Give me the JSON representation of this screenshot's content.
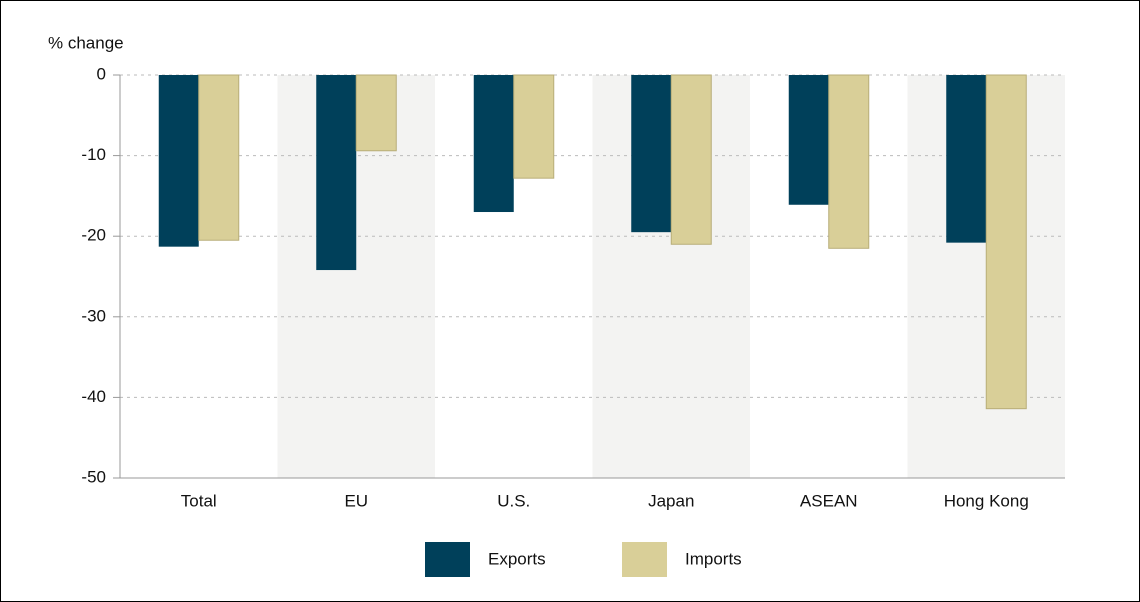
{
  "chart_data": {
    "type": "bar",
    "y_label": "% change",
    "categories": [
      "Total",
      "EU",
      "U.S.",
      "Japan",
      "ASEAN",
      "Hong Kong"
    ],
    "series": [
      {
        "name": "Exports",
        "color": "#00405a",
        "values": [
          -21.3,
          -24.2,
          -17.0,
          -19.5,
          -16.1,
          -20.8
        ]
      },
      {
        "name": "Imports",
        "color": "#d9cf98",
        "values": [
          -20.5,
          -9.4,
          -12.8,
          -21.0,
          -21.5,
          -41.4
        ]
      }
    ],
    "ylim": [
      -50,
      0
    ],
    "yticks": [
      0,
      -10,
      -20,
      -30,
      -40,
      -50
    ],
    "grid": true,
    "legend": "bottom"
  }
}
